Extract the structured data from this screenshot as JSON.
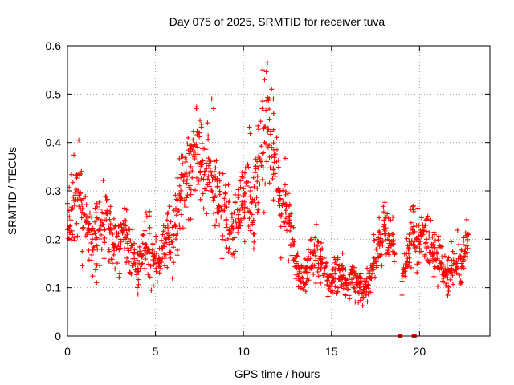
{
  "chart_data": {
    "type": "scatter",
    "title": "Day 075 of 2025, SRMTID for receiver tuva",
    "xlabel": "GPS time / hours",
    "ylabel": "SRMTID / TECUs",
    "xlim": [
      0,
      24
    ],
    "ylim": [
      0,
      0.6
    ],
    "xticks": [
      0,
      5,
      10,
      15,
      20
    ],
    "yticks": [
      0,
      0.1,
      0.2,
      0.3,
      0.4,
      0.5,
      0.6
    ],
    "xtick_labels": [
      "0",
      "5",
      "10",
      "15",
      "20"
    ],
    "ytick_labels": [
      "0",
      "0.1",
      "0.2",
      "0.3",
      "0.4",
      "0.5",
      "0.6"
    ],
    "grid": true,
    "marker": "+",
    "series": [
      {
        "name": "SRMTID",
        "color": "#ff0000",
        "x": [
          0.0,
          0.2,
          0.4,
          0.6,
          0.8,
          1.0,
          1.2,
          1.4,
          1.6,
          1.8,
          2.0,
          2.2,
          2.4,
          2.6,
          2.8,
          3.0,
          3.2,
          3.4,
          3.6,
          3.8,
          4.0,
          4.2,
          4.4,
          4.6,
          4.8,
          5.0,
          5.2,
          5.4,
          5.6,
          5.8,
          6.0,
          6.2,
          6.4,
          6.6,
          6.8,
          7.0,
          7.2,
          7.4,
          7.6,
          7.8,
          8.0,
          8.2,
          8.4,
          8.6,
          8.8,
          9.0,
          9.2,
          9.4,
          9.6,
          9.8,
          10.0,
          10.2,
          10.4,
          10.6,
          10.8,
          11.0,
          11.2,
          11.4,
          11.6,
          11.8,
          12.0,
          12.2,
          12.4,
          12.6,
          12.8,
          13.0,
          13.2,
          13.4,
          13.6,
          13.8,
          14.0,
          14.2,
          14.4,
          14.6,
          14.8,
          15.0,
          15.2,
          15.4,
          15.6,
          15.8,
          16.0,
          16.2,
          16.4,
          16.6,
          16.8,
          17.0,
          17.2,
          17.4,
          17.6,
          17.8,
          18.0,
          18.2,
          18.4,
          18.6,
          19.0,
          19.2,
          19.4,
          19.6,
          19.8,
          20.0,
          20.2,
          20.4,
          20.6,
          20.8,
          21.0,
          21.2,
          21.4,
          21.6,
          21.8,
          22.0,
          22.2,
          22.4,
          22.6,
          22.8
        ],
        "y": [
          0.22,
          0.24,
          0.27,
          0.3,
          0.28,
          0.25,
          0.23,
          0.21,
          0.2,
          0.22,
          0.23,
          0.24,
          0.22,
          0.19,
          0.18,
          0.2,
          0.22,
          0.21,
          0.18,
          0.16,
          0.14,
          0.17,
          0.19,
          0.18,
          0.17,
          0.16,
          0.15,
          0.18,
          0.2,
          0.19,
          0.21,
          0.25,
          0.28,
          0.32,
          0.33,
          0.35,
          0.37,
          0.39,
          0.36,
          0.34,
          0.33,
          0.3,
          0.29,
          0.27,
          0.26,
          0.24,
          0.22,
          0.2,
          0.23,
          0.26,
          0.29,
          0.31,
          0.3,
          0.28,
          0.33,
          0.36,
          0.4,
          0.43,
          0.39,
          0.33,
          0.3,
          0.27,
          0.26,
          0.24,
          0.2,
          0.15,
          0.12,
          0.11,
          0.14,
          0.16,
          0.17,
          0.18,
          0.15,
          0.13,
          0.12,
          0.11,
          0.13,
          0.14,
          0.12,
          0.11,
          0.12,
          0.13,
          0.11,
          0.1,
          0.09,
          0.1,
          0.12,
          0.15,
          0.18,
          0.21,
          0.22,
          0.2,
          0.19,
          0.17,
          0.12,
          0.14,
          0.18,
          0.22,
          0.2,
          0.19,
          0.21,
          0.2,
          0.18,
          0.17,
          0.16,
          0.15,
          0.13,
          0.12,
          0.14,
          0.15,
          0.16,
          0.15,
          0.18,
          0.21
        ]
      }
    ],
    "zero_markers_x": [
      18.9,
      19.7
    ]
  }
}
